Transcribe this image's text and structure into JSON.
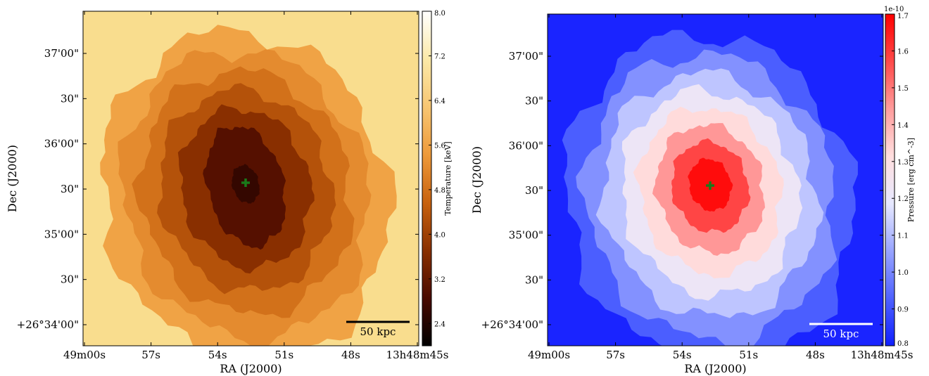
{
  "chart_data": [
    {
      "type": "heatmap",
      "name": "temperature-map",
      "xlabel": "RA (J2000)",
      "ylabel": "Dec (J2000)",
      "x_ticks": [
        "49m00s",
        "57s",
        "54s",
        "51s",
        "48s",
        "13h48m45s"
      ],
      "y_ticks": [
        "37'00\"",
        "30\"",
        "36'00\"",
        "30\"",
        "35'00\"",
        "30\"",
        "+26°34'00\""
      ],
      "colorbar": {
        "label": "Temperature [keV]",
        "ticks": [
          "8.0",
          "7.2",
          "6.4",
          "5.6",
          "4.8",
          "4.0",
          "3.2",
          "2.4"
        ],
        "range": [
          2.0,
          8.0
        ],
        "colormap": [
          "#000000",
          "#4a0a00",
          "#8a3000",
          "#c8620f",
          "#ee9a3a",
          "#f7c673",
          "#fbe9a8",
          "#ffffff"
        ],
        "offset_label": ""
      },
      "center_marker": "+",
      "marker_color": "#1a7a1a",
      "scale_bar": {
        "label": "50 kpc",
        "color": "#000000"
      },
      "background_color": "#f9dd8e",
      "levels": [
        5.6,
        5.2,
        4.8,
        4.3,
        3.7,
        3.0,
        2.6
      ]
    },
    {
      "type": "heatmap",
      "name": "pressure-map",
      "xlabel": "RA (J2000)",
      "ylabel": "Dec (J2000)",
      "x_ticks": [
        "49m00s",
        "57s",
        "54s",
        "51s",
        "48s",
        "13h48m45s"
      ],
      "y_ticks": [
        "37'00\"",
        "30\"",
        "36'00\"",
        "30\"",
        "35'00\"",
        "30\"",
        "+26°34'00\""
      ],
      "colorbar": {
        "label": "Pressure [erg cm^-3]",
        "ticks": [
          "1.7",
          "1.6",
          "1.5",
          "1.4",
          "1.3",
          "1.2",
          "1.1",
          "1.0",
          "0.9",
          "0.8"
        ],
        "range": [
          0.8,
          1.7
        ],
        "colormap": [
          "#0f1fff",
          "#4f62ff",
          "#98a4ff",
          "#e6e8ff",
          "#ffdede",
          "#ff9c9c",
          "#ff4a4a",
          "#ff0000"
        ],
        "offset_label": "1e-10"
      },
      "center_marker": "+",
      "marker_color": "#1a7a1a",
      "scale_bar": {
        "label": "50 kpc",
        "color": "#ffffff"
      },
      "background_color": "#1a24ff",
      "levels": [
        0.92,
        1.02,
        1.12,
        1.22,
        1.32,
        1.45,
        1.58,
        1.68
      ]
    }
  ]
}
